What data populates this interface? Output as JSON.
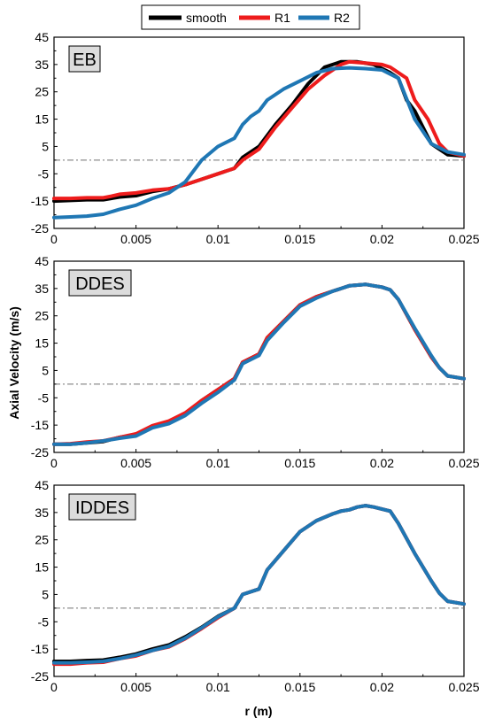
{
  "legend": [
    {
      "name": "smooth",
      "color": "#000000"
    },
    {
      "name": "R1",
      "color": "#ee1c1c"
    },
    {
      "name": "R2",
      "color": "#1f77b4"
    }
  ],
  "axes": {
    "xlabel": "r (m)",
    "ylabel": "Axial Velocity (m/s)"
  },
  "chart_data": [
    {
      "type": "line",
      "panel_label": "EB",
      "xlim": [
        0,
        0.025
      ],
      "ylim": [
        -25,
        45
      ],
      "x_ticks": [
        "0",
        "0.005",
        "0.01",
        "0.015",
        "0.02",
        "0.025"
      ],
      "y_ticks": [
        "45",
        "35",
        "25",
        "15",
        "5",
        "-5",
        "-15",
        "-25"
      ],
      "reference_line_y": 0,
      "series": [
        {
          "name": "smooth",
          "color": "#000000",
          "x": [
            0,
            0.002,
            0.003,
            0.004,
            0.005,
            0.006,
            0.007,
            0.008,
            0.009,
            0.01,
            0.011,
            0.0115,
            0.0125,
            0.0135,
            0.0145,
            0.0155,
            0.0165,
            0.0175,
            0.0185,
            0.0195,
            0.0205,
            0.021,
            0.0215,
            0.022,
            0.023,
            0.024,
            0.025
          ],
          "y": [
            -15,
            -14.5,
            -14.5,
            -13.5,
            -13,
            -11.5,
            -10.5,
            -9,
            -7,
            -5,
            -3,
            1,
            5,
            13,
            20,
            28,
            34,
            36,
            36,
            35,
            32,
            30,
            22,
            18,
            6,
            2,
            1.5
          ]
        },
        {
          "name": "R1",
          "color": "#ee1c1c",
          "x": [
            0,
            0.001,
            0.002,
            0.003,
            0.0035,
            0.004,
            0.005,
            0.006,
            0.007,
            0.008,
            0.009,
            0.01,
            0.011,
            0.0115,
            0.0125,
            0.0135,
            0.0145,
            0.0155,
            0.0165,
            0.0175,
            0.018,
            0.019,
            0.02,
            0.0205,
            0.0215,
            0.022,
            0.0228,
            0.0235,
            0.024,
            0.025
          ],
          "y": [
            -14,
            -14,
            -13.8,
            -13.8,
            -13.2,
            -12.5,
            -12,
            -11,
            -10.5,
            -9,
            -7,
            -5,
            -3,
            0,
            4,
            12,
            19,
            26,
            31,
            35,
            36,
            35.5,
            35,
            34,
            30,
            22,
            15,
            6,
            3,
            1.5
          ]
        },
        {
          "name": "R2",
          "color": "#1f77b4",
          "x": [
            0,
            0.001,
            0.002,
            0.003,
            0.004,
            0.005,
            0.006,
            0.007,
            0.008,
            0.009,
            0.01,
            0.011,
            0.0115,
            0.012,
            0.0125,
            0.013,
            0.014,
            0.015,
            0.016,
            0.017,
            0.018,
            0.019,
            0.02,
            0.021,
            0.022,
            0.023,
            0.024,
            0.025
          ],
          "y": [
            -21,
            -20.8,
            -20.5,
            -19.8,
            -18,
            -16.5,
            -14,
            -12,
            -8,
            0,
            5,
            8,
            13,
            16,
            18,
            22,
            26,
            29,
            32,
            33.5,
            33.8,
            33.5,
            33,
            30,
            15,
            6,
            3,
            2
          ]
        }
      ]
    },
    {
      "type": "line",
      "panel_label": "DDES",
      "xlim": [
        0,
        0.025
      ],
      "ylim": [
        -25,
        45
      ],
      "x_ticks": [
        "0",
        "0.005",
        "0.01",
        "0.015",
        "0.02",
        "0.025"
      ],
      "y_ticks": [
        "45",
        "35",
        "25",
        "15",
        "5",
        "-5",
        "-15",
        "-25"
      ],
      "reference_line_y": 0,
      "series": [
        {
          "name": "smooth",
          "color": "#000000",
          "x": [
            0,
            0.001,
            0.002,
            0.003,
            0.004,
            0.005,
            0.006,
            0.007,
            0.008,
            0.009,
            0.01,
            0.011,
            0.0115,
            0.0125,
            0.013,
            0.014,
            0.015,
            0.016,
            0.017,
            0.0175,
            0.018,
            0.019,
            0.0195,
            0.02,
            0.0205,
            0.021,
            0.022,
            0.023,
            0.0235,
            0.024,
            0.025
          ],
          "y": [
            -22,
            -22,
            -21.5,
            -21,
            -19.5,
            -18.5,
            -15.5,
            -14,
            -11,
            -6,
            -2,
            2,
            8,
            11,
            17,
            23,
            29,
            32,
            34,
            35,
            36,
            36.5,
            36,
            35.5,
            34.5,
            31,
            20,
            10,
            6,
            3,
            2
          ]
        },
        {
          "name": "R1",
          "color": "#ee1c1c",
          "x": [
            0,
            0.001,
            0.002,
            0.003,
            0.004,
            0.005,
            0.006,
            0.007,
            0.008,
            0.009,
            0.01,
            0.011,
            0.0115,
            0.0125,
            0.013,
            0.014,
            0.015,
            0.016,
            0.017,
            0.0175,
            0.018,
            0.019,
            0.0195,
            0.02,
            0.0205,
            0.021,
            0.022,
            0.023,
            0.0235,
            0.024,
            0.025
          ],
          "y": [
            -22,
            -21.8,
            -21.2,
            -20.8,
            -19.5,
            -18.2,
            -15.2,
            -13.5,
            -10.5,
            -6,
            -2,
            2,
            8,
            11,
            17,
            23,
            29,
            32,
            34,
            35,
            36,
            36.5,
            36,
            35.5,
            34.5,
            31,
            20,
            10,
            6,
            3,
            2
          ]
        },
        {
          "name": "R2",
          "color": "#1f77b4",
          "x": [
            0,
            0.001,
            0.002,
            0.003,
            0.004,
            0.005,
            0.006,
            0.007,
            0.008,
            0.009,
            0.01,
            0.011,
            0.0115,
            0.0125,
            0.013,
            0.014,
            0.015,
            0.016,
            0.017,
            0.0175,
            0.018,
            0.019,
            0.0195,
            0.02,
            0.0205,
            0.021,
            0.022,
            0.023,
            0.0235,
            0.024,
            0.025
          ],
          "y": [
            -22,
            -22,
            -21.5,
            -20.8,
            -19.8,
            -19,
            -16,
            -14.5,
            -11.5,
            -7,
            -3,
            1.5,
            7.5,
            10.5,
            16,
            22.5,
            28.5,
            31.5,
            34,
            35,
            36,
            36.5,
            36,
            35.5,
            34.5,
            31,
            20.5,
            10.5,
            6,
            3,
            2
          ]
        }
      ]
    },
    {
      "type": "line",
      "panel_label": "IDDES",
      "xlim": [
        0,
        0.025
      ],
      "ylim": [
        -25,
        45
      ],
      "x_ticks": [
        "0",
        "0.005",
        "0.01",
        "0.015",
        "0.02",
        "0.025"
      ],
      "y_ticks": [
        "45",
        "35",
        "25",
        "15",
        "5",
        "-5",
        "-15",
        "-25"
      ],
      "reference_line_y": 0,
      "series": [
        {
          "name": "smooth",
          "color": "#000000",
          "x": [
            0,
            0.001,
            0.002,
            0.003,
            0.004,
            0.005,
            0.006,
            0.007,
            0.008,
            0.009,
            0.01,
            0.011,
            0.0115,
            0.0125,
            0.013,
            0.014,
            0.015,
            0.016,
            0.017,
            0.0175,
            0.018,
            0.0185,
            0.019,
            0.0195,
            0.0205,
            0.021,
            0.022,
            0.023,
            0.0235,
            0.024,
            0.025
          ],
          "y": [
            -19.5,
            -19.5,
            -19.2,
            -19,
            -18,
            -16.8,
            -15,
            -13.5,
            -10.5,
            -7,
            -3,
            0,
            5,
            7,
            14,
            21,
            28,
            32,
            34.5,
            35.5,
            36,
            37,
            37.5,
            37,
            35.5,
            31,
            20,
            10,
            5.5,
            2.5,
            1.5
          ]
        },
        {
          "name": "R1",
          "color": "#ee1c1c",
          "x": [
            0,
            0.001,
            0.002,
            0.003,
            0.004,
            0.005,
            0.006,
            0.007,
            0.008,
            0.009,
            0.01,
            0.011,
            0.0115,
            0.0125,
            0.013,
            0.014,
            0.015,
            0.016,
            0.017,
            0.0175,
            0.018,
            0.0185,
            0.019,
            0.0195,
            0.0205,
            0.021,
            0.022,
            0.023,
            0.0235,
            0.024,
            0.025
          ],
          "y": [
            -20.5,
            -20.5,
            -20,
            -19.8,
            -18.5,
            -17.5,
            -15.5,
            -14.2,
            -11.2,
            -7.5,
            -3.5,
            0,
            5,
            7,
            14,
            21,
            28,
            32,
            34.5,
            35.5,
            36,
            37,
            37.5,
            37,
            35.5,
            31,
            20,
            10,
            5.5,
            2.5,
            1.5
          ]
        },
        {
          "name": "R2",
          "color": "#1f77b4",
          "x": [
            0,
            0.001,
            0.002,
            0.003,
            0.004,
            0.005,
            0.006,
            0.007,
            0.008,
            0.009,
            0.01,
            0.011,
            0.0115,
            0.0125,
            0.013,
            0.014,
            0.015,
            0.016,
            0.017,
            0.0175,
            0.018,
            0.0185,
            0.019,
            0.0195,
            0.0205,
            0.021,
            0.022,
            0.023,
            0.0235,
            0.024,
            0.025
          ],
          "y": [
            -20,
            -20,
            -19.8,
            -19.5,
            -18.5,
            -17.2,
            -15.5,
            -14,
            -11,
            -7.2,
            -3.2,
            0,
            5,
            7,
            14,
            21,
            28,
            32,
            34.5,
            35.5,
            36,
            37,
            37.5,
            37,
            35.5,
            31,
            20,
            10,
            5.5,
            2.5,
            1.5
          ]
        }
      ]
    }
  ]
}
